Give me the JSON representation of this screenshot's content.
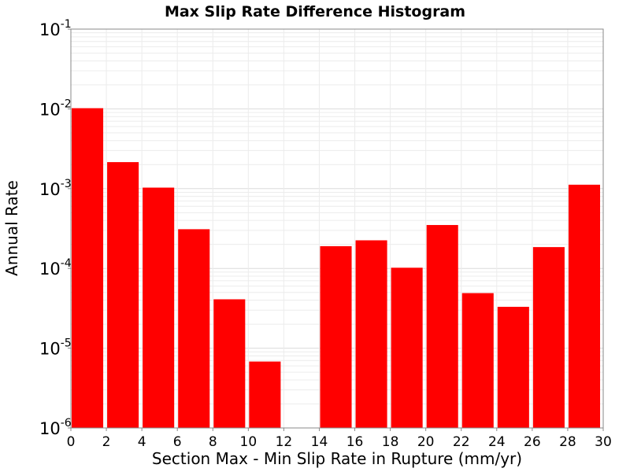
{
  "chart_data": {
    "type": "bar",
    "title": "Max Slip Rate Difference Histogram",
    "xlabel": "Section Max - Min Slip Rate in Rupture (mm/yr)",
    "ylabel": "Annual Rate",
    "y_scale": "log",
    "ylim": [
      1e-06,
      0.1
    ],
    "xlim": [
      0,
      30
    ],
    "bin_width": 2,
    "x_bin_starts": [
      0,
      2,
      4,
      6,
      8,
      10,
      12,
      14,
      16,
      18,
      20,
      22,
      24,
      26,
      28
    ],
    "values": [
      0.0102,
      0.00215,
      0.00103,
      0.00031,
      4.1e-05,
      6.8e-06,
      null,
      0.00019,
      0.000225,
      0.000102,
      0.00035,
      4.9e-05,
      3.3e-05,
      0.000185,
      0.00112
    ],
    "x_ticks": [
      "0",
      "2",
      "4",
      "6",
      "8",
      "10",
      "12",
      "14",
      "16",
      "18",
      "20",
      "22",
      "24",
      "26",
      "28",
      "30"
    ],
    "y_ticks": [
      {
        "base": "10",
        "exp": "-1"
      },
      {
        "base": "10",
        "exp": "-2"
      },
      {
        "base": "10",
        "exp": "-3"
      },
      {
        "base": "10",
        "exp": "-4"
      },
      {
        "base": "10",
        "exp": "-5"
      },
      {
        "base": "10",
        "exp": "-6"
      }
    ],
    "bar_color": "#ff0000",
    "grid": true,
    "legend": "none"
  }
}
